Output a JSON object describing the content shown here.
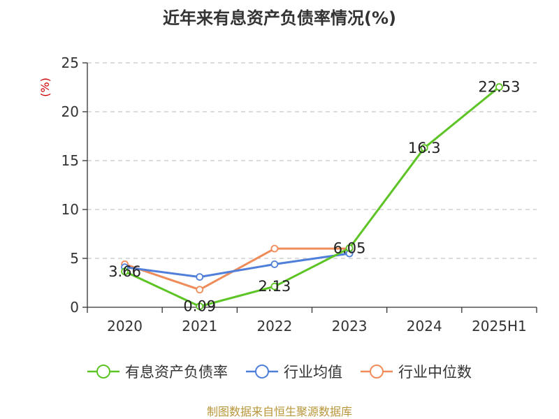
{
  "chart_data": {
    "type": "line",
    "title": "近年来有息资产负债率情况(%)",
    "ylabel": "(%)",
    "categories": [
      "2020",
      "2021",
      "2022",
      "2023",
      "2024",
      "2025H1"
    ],
    "ylim": [
      0,
      25
    ],
    "yticks": [
      0,
      5,
      10,
      15,
      20,
      25
    ],
    "grid": true,
    "legend_position": "bottom",
    "series": [
      {
        "name": "有息资产负债率",
        "color": "#5cc424",
        "values": [
          3.66,
          0.09,
          2.13,
          6.05,
          16.3,
          22.53
        ],
        "labels": [
          "3.66",
          "0.09",
          "2.13",
          "6.05",
          "16.3",
          "22.53"
        ]
      },
      {
        "name": "行业均值",
        "color": "#4f7fd9",
        "values": [
          4.1,
          3.1,
          4.4,
          5.5,
          null,
          null
        ]
      },
      {
        "name": "行业中位数",
        "color": "#f08c5a",
        "values": [
          4.4,
          1.8,
          6.0,
          6.0,
          null,
          null
        ]
      }
    ]
  },
  "source_note": "制图数据来自恒生聚源数据库"
}
